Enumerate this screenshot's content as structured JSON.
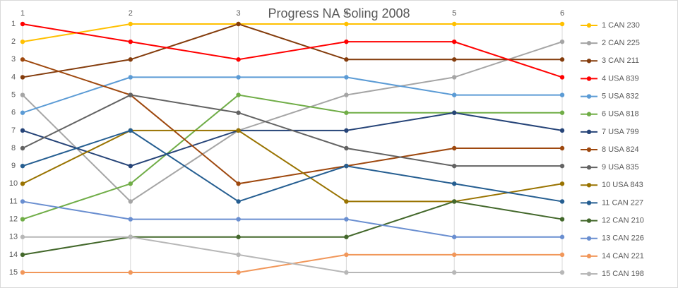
{
  "chart_data": {
    "type": "line",
    "title": "Progress NA Soling 2008",
    "x": [
      1,
      2,
      3,
      4,
      5,
      6
    ],
    "xlim": [
      1,
      6
    ],
    "xticks": [
      1,
      2,
      3,
      4,
      5,
      6
    ],
    "ylim": [
      15,
      1
    ],
    "yticks": [
      1,
      2,
      3,
      4,
      5,
      6,
      7,
      8,
      9,
      10,
      11,
      12,
      13,
      14,
      15
    ],
    "grid": true,
    "legend": "right",
    "series": [
      {
        "name": "1 CAN 230",
        "color": "#ffc000",
        "values": [
          2,
          1,
          1,
          1,
          1,
          1
        ]
      },
      {
        "name": "2 CAN 225",
        "color": "#a5a5a5",
        "values": [
          5,
          11,
          7,
          5,
          4,
          2
        ]
      },
      {
        "name": "3 CAN 211",
        "color": "#843c0c",
        "values": [
          4,
          3,
          1,
          3,
          3,
          3
        ]
      },
      {
        "name": "4 USA 839",
        "color": "#ff0000",
        "values": [
          1,
          2,
          3,
          2,
          2,
          4
        ]
      },
      {
        "name": "5 USA 832",
        "color": "#5b9bd5",
        "values": [
          6,
          4,
          4,
          4,
          5,
          5
        ]
      },
      {
        "name": "6 USA 818",
        "color": "#70ad47",
        "values": [
          12,
          10,
          5,
          6,
          6,
          6
        ]
      },
      {
        "name": "7 USA 799",
        "color": "#264478",
        "values": [
          7,
          9,
          7,
          7,
          6,
          7
        ]
      },
      {
        "name": "8 USA 824",
        "color": "#9e480e",
        "values": [
          3,
          5,
          10,
          9,
          8,
          8
        ]
      },
      {
        "name": "9 USA 835",
        "color": "#636363",
        "values": [
          8,
          5,
          6,
          8,
          9,
          9
        ]
      },
      {
        "name": "10 USA 843",
        "color": "#997300",
        "values": [
          10,
          7,
          7,
          11,
          11,
          10
        ]
      },
      {
        "name": "11 CAN 227",
        "color": "#255e91",
        "values": [
          9,
          7,
          11,
          9,
          10,
          11
        ]
      },
      {
        "name": "12 CAN 210",
        "color": "#43682b",
        "values": [
          14,
          13,
          13,
          13,
          11,
          12
        ]
      },
      {
        "name": "13 CAN 226",
        "color": "#698ed0",
        "values": [
          11,
          12,
          12,
          12,
          13,
          13
        ]
      },
      {
        "name": "14 CAN 221",
        "color": "#f1975a",
        "values": [
          15,
          15,
          15,
          14,
          14,
          14
        ]
      },
      {
        "name": "15 CAN 198",
        "color": "#b7b7b7",
        "values": [
          13,
          13,
          14,
          15,
          15,
          15
        ]
      }
    ]
  }
}
